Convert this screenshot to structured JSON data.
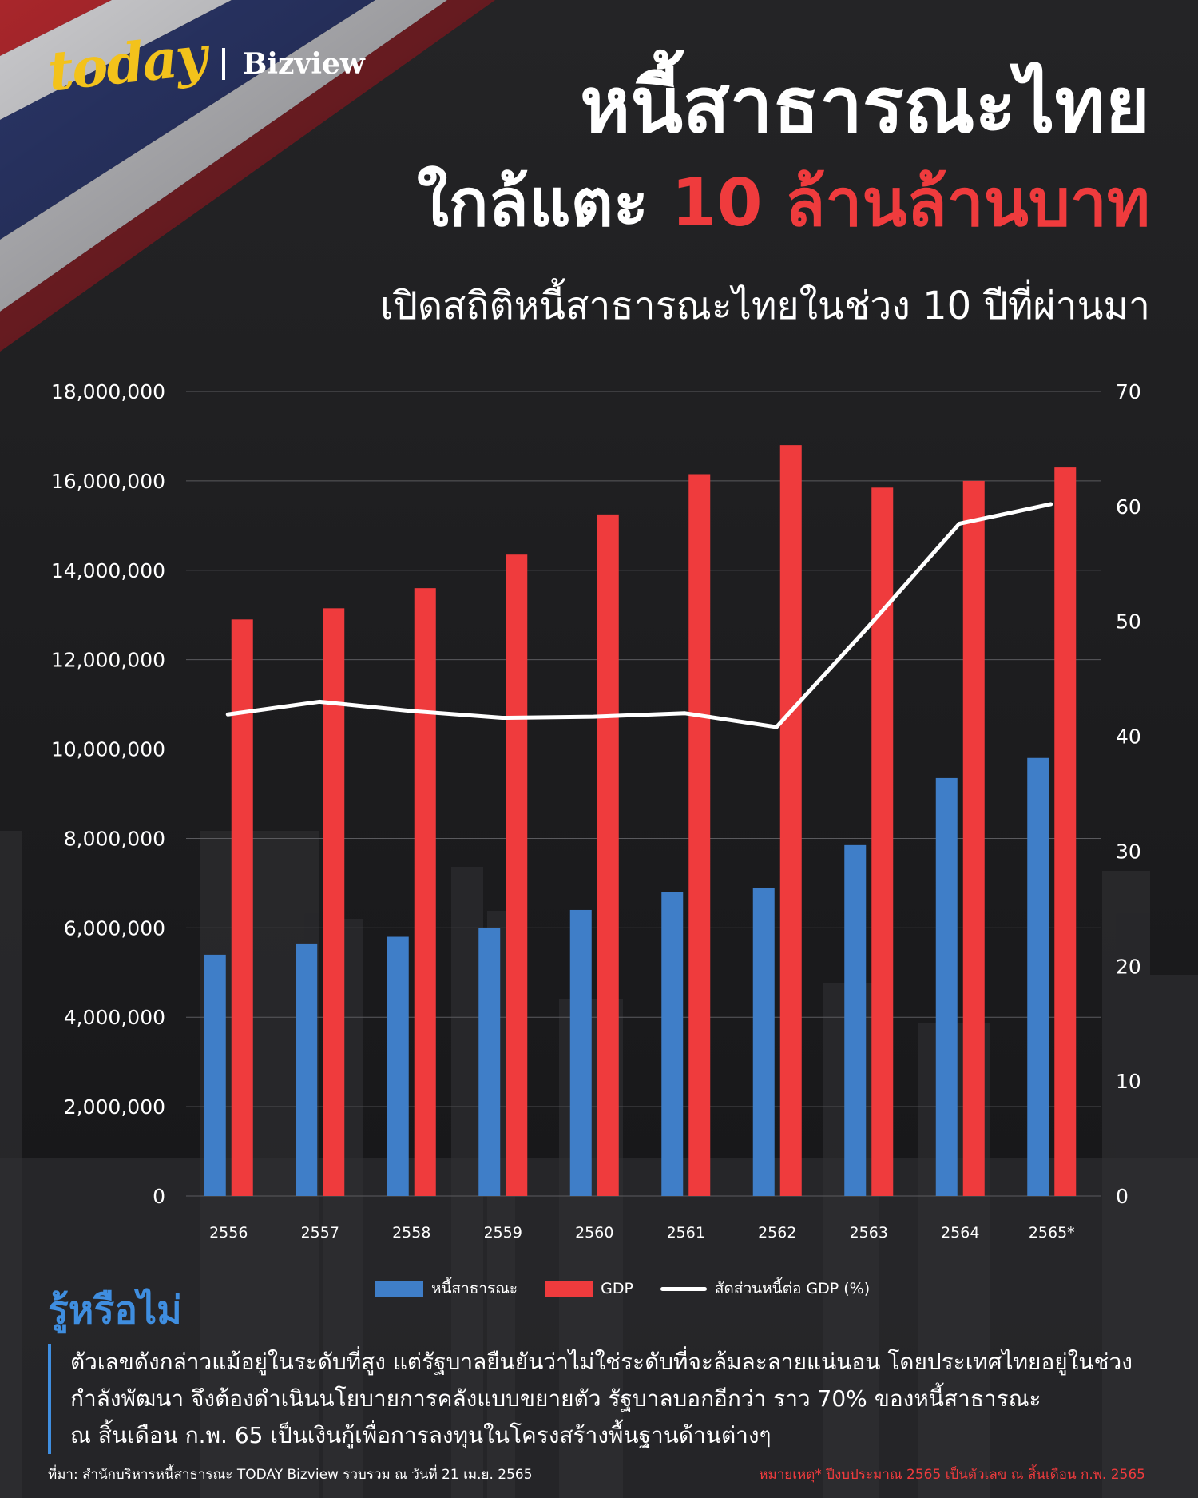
{
  "brand": {
    "name": "today",
    "section": "Bizview"
  },
  "header": {
    "title_line1": "หนี้สาธารณะไทย",
    "title_line2_prefix": "ใกล้แตะ ",
    "title_line2_highlight": "10 ล้านล้านบาท",
    "subtitle": "เปิดสถิติหนี้สาธารณะไทยในช่วง 10 ปีที่ผ่านมา"
  },
  "colors": {
    "debt": "#3f7ec8",
    "gdp": "#ef3b3d",
    "ratio": "#ffffff",
    "accent_blue": "#3f8ee0",
    "brand_yellow": "#f3c21b"
  },
  "chart_data": {
    "type": "bar",
    "categories": [
      "2556",
      "2557",
      "2558",
      "2559",
      "2560",
      "2561",
      "2562",
      "2563",
      "2564",
      "2565*"
    ],
    "series": [
      {
        "name": "หนี้สาธารณะ",
        "axis": "left",
        "values": [
          5400000,
          5650000,
          5800000,
          6000000,
          6400000,
          6800000,
          6900000,
          7850000,
          9350000,
          9800000
        ]
      },
      {
        "name": "GDP",
        "axis": "left",
        "values": [
          12900000,
          13150000,
          13600000,
          14350000,
          15250000,
          16150000,
          16800000,
          15850000,
          16000000,
          16300000
        ]
      },
      {
        "name": "สัดส่วนหนี้ต่อ GDP (%)",
        "axis": "right",
        "type": "line",
        "values": [
          41.9,
          43.0,
          42.2,
          41.6,
          41.7,
          42.0,
          40.8,
          49.5,
          58.5,
          60.2
        ]
      }
    ],
    "yticks_left": [
      "0",
      "2,000,000",
      "4,000,000",
      "6,000,000",
      "8,000,000",
      "10,000,000",
      "12,000,000",
      "14,000,000",
      "16,000,000",
      "18,000,000"
    ],
    "yticks_right": [
      "0",
      "10",
      "20",
      "30",
      "40",
      "50",
      "60",
      "70"
    ],
    "ylim_left": [
      0,
      18000000
    ],
    "ylim_right": [
      0,
      70
    ],
    "grid": true,
    "legend": "bottom"
  },
  "did_you_know": {
    "heading": "รู้หรือไม่",
    "lines": [
      "ตัวเลขดังกล่าวแม้อยู่ในระดับที่สูง แต่รัฐบาลยืนยันว่าไม่ใช่ระดับที่จะล้มละลายแน่นอน โดยประเทศไทยอยู่ในช่วง",
      "กำลังพัฒนา จึงต้องดำเนินนโยบายการคลังแบบขยายตัว รัฐบาลบอกอีกว่า ราว 70% ของหนี้สาธารณะ",
      "ณ สิ้นเดือน ก.พ. 65 เป็นเงินกู้เพื่อการลงทุนในโครงสร้างพื้นฐานด้านต่างๆ"
    ]
  },
  "footer": {
    "source": "ที่มา: สำนักบริหารหนี้สาธารณะ TODAY Bizview รวบรวม ณ วันที่ 21 เม.ย. 2565",
    "note": "หมายเหตุ* ปีงบประมาณ 2565 เป็นตัวเลข ณ สิ้นเดือน ก.พ. 2565"
  }
}
